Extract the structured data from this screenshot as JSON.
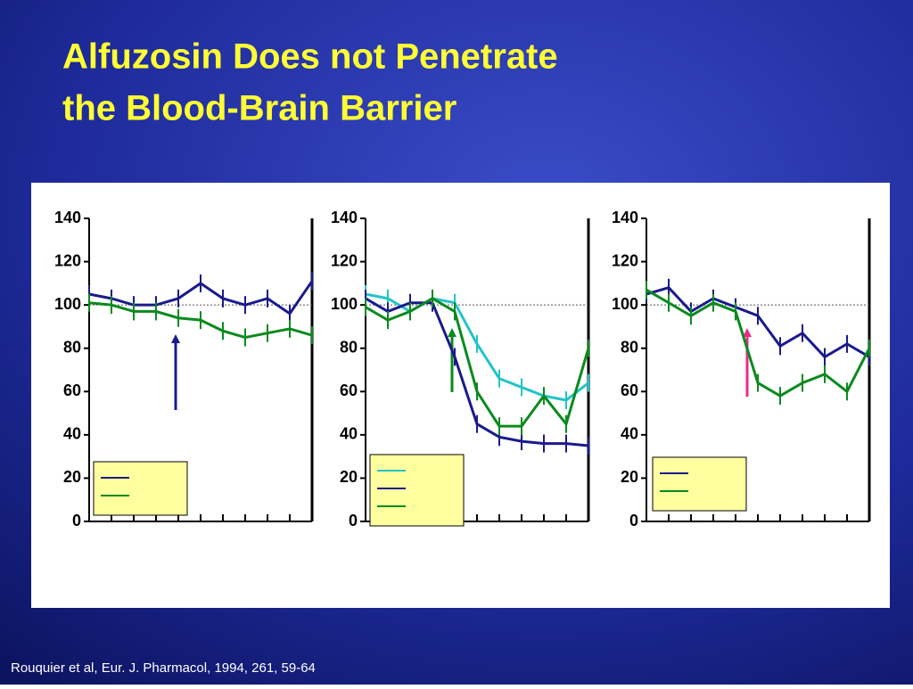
{
  "slide": {
    "title": [
      "Alfuzosin Does not Penetrate",
      "the Blood-Brain Barrier"
    ],
    "citation": "Rouquier et al, Eur. J. Pharmacol, 1994, 261, 59-64"
  },
  "chart_data": [
    {
      "type": "line",
      "categories": [
        null,
        null,
        null,
        null,
        null,
        null,
        null,
        null,
        null,
        null,
        null
      ],
      "ylim": [
        0,
        140
      ],
      "yticks": [
        0,
        20,
        40,
        60,
        80,
        100,
        120,
        140
      ],
      "reference_line": 100,
      "series": [
        {
          "color": "#1a1a8c",
          "values": [
            105,
            103,
            100,
            100,
            103,
            110,
            103,
            100,
            103,
            96,
            111
          ]
        },
        {
          "color": "#0a8a1e",
          "values": [
            101,
            100,
            97,
            97,
            94,
            93,
            88,
            85,
            87,
            89,
            86
          ]
        }
      ]
    },
    {
      "type": "line",
      "categories": [
        null,
        null,
        null,
        null,
        null,
        null,
        null,
        null,
        null,
        null,
        null
      ],
      "ylim": [
        0,
        140
      ],
      "yticks": [
        0,
        20,
        40,
        60,
        80,
        100,
        120,
        140
      ],
      "reference_line": 100,
      "series": [
        {
          "color": "#22c4c8",
          "values": [
            105,
            103,
            97,
            103,
            101,
            82,
            66,
            62,
            58,
            56,
            64
          ]
        },
        {
          "color": "#1a1a8c",
          "values": [
            103,
            97,
            101,
            101,
            76,
            45,
            39,
            37,
            36,
            36,
            35
          ]
        },
        {
          "color": "#0a8a1e",
          "values": [
            99,
            93,
            97,
            103,
            97,
            60,
            44,
            44,
            58,
            45,
            80
          ]
        }
      ]
    },
    {
      "type": "line",
      "categories": [
        null,
        null,
        null,
        null,
        null,
        null,
        null,
        null,
        null,
        null,
        null
      ],
      "ylim": [
        0,
        140
      ],
      "yticks": [
        0,
        20,
        40,
        60,
        80,
        100,
        120,
        140
      ],
      "reference_line": 100,
      "series": [
        {
          "color": "#1a1a8c",
          "values": [
            105,
            108,
            97,
            103,
            99,
            95,
            81,
            87,
            76,
            82,
            76
          ]
        },
        {
          "color": "#0a8a1e",
          "values": [
            107,
            101,
            95,
            101,
            97,
            64,
            58,
            64,
            68,
            60,
            80
          ]
        }
      ]
    }
  ]
}
